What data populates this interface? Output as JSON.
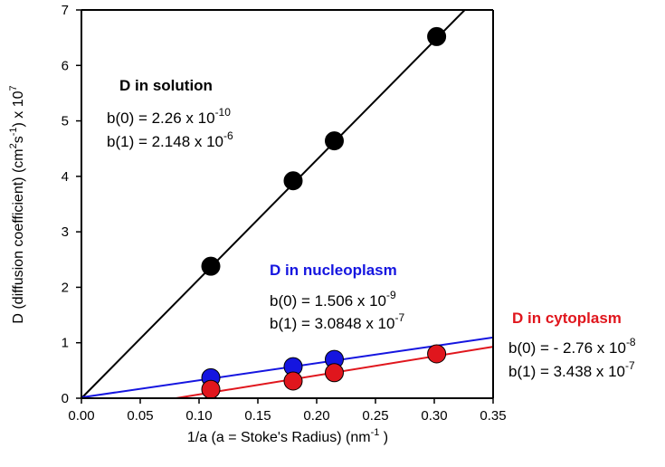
{
  "chart_data": {
    "type": "scatter",
    "xlabel": "1/a   (a = Stoke's Radius)  (nm",
    "xlabel_sup": "-1",
    "xlabel_end": "  )",
    "ylabel_parts": [
      "D (diffusion coefficient) (cm",
      "2",
      "s",
      "-1",
      ") x 10",
      "7"
    ],
    "xlim": [
      0,
      0.35
    ],
    "ylim": [
      0,
      7
    ],
    "xticks": [
      "0.00",
      "0.05",
      "0.10",
      "0.15",
      "0.20",
      "0.25",
      "0.30",
      "0.35"
    ],
    "yticks": [
      "0",
      "1",
      "2",
      "3",
      "4",
      "5",
      "6",
      "7"
    ],
    "grid": false,
    "series": [
      {
        "name": "D in solution",
        "color": "#000000",
        "x": [
          0.11,
          0.18,
          0.215,
          0.302
        ],
        "y": [
          2.38,
          3.92,
          4.64,
          6.52
        ],
        "fit": {
          "slope": 21.48,
          "intercept": 0.0
        },
        "annotation": {
          "title": "D in solution",
          "line1_base": "b(0) = 2.26 x 10",
          "line1_exp": "-10",
          "line2_base": "b(1)  =  2.148 x 10",
          "line2_exp": "-6"
        }
      },
      {
        "name": "D in nucleoplasm",
        "color": "#1515e0",
        "x": [
          0.11,
          0.18,
          0.215
        ],
        "y": [
          0.37,
          0.57,
          0.7
        ],
        "fit": {
          "slope": 3.0848,
          "intercept": 0.015
        },
        "annotation": {
          "title": "D in nucleoplasm",
          "line1_base": "b(0)  =  1.506  x 10",
          "line1_exp": "-9",
          "line2_base": "b(1)  =  3.0848 x 10",
          "line2_exp": "-7"
        }
      },
      {
        "name": "D in cytoplasm",
        "color": "#e0161d",
        "x": [
          0.11,
          0.18,
          0.215,
          0.302
        ],
        "y": [
          0.16,
          0.31,
          0.46,
          0.8
        ],
        "fit": {
          "slope": 3.438,
          "intercept": -0.276
        },
        "annotation": {
          "title": "D in cytoplasm",
          "line1_base": "b(0) = - 2.76 x 10",
          "line1_exp": "-8",
          "line2_base": "b(1)  =  3.438 x 10",
          "line2_exp": "-7"
        }
      }
    ]
  }
}
